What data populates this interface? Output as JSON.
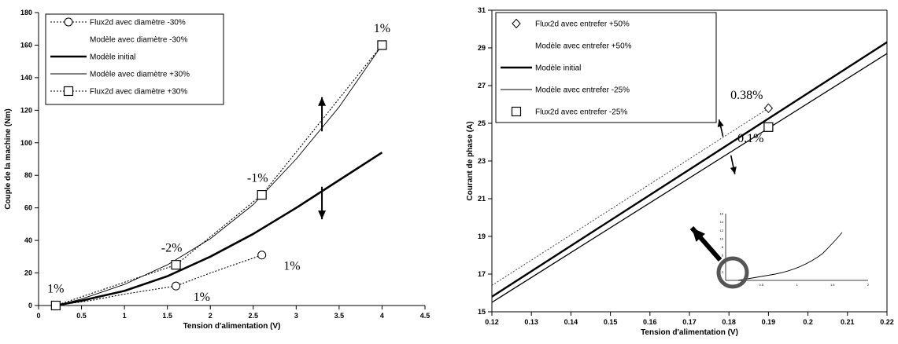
{
  "chart_data": [
    {
      "type": "line",
      "title": "",
      "xlabel": "Tension d'alimentation (V)",
      "ylabel": "Couple de la machine (Nm)",
      "xlim": [
        0,
        4.5
      ],
      "ylim": [
        0,
        180
      ],
      "xticks": [
        "0",
        "0.5",
        "1",
        "1.5",
        "2",
        "2.5",
        "3",
        "3.5",
        "4",
        "4.5"
      ],
      "yticks": [
        "0",
        "20",
        "40",
        "60",
        "80",
        "100",
        "120",
        "140",
        "160",
        "180"
      ],
      "grid": false,
      "legend_position": "top-left",
      "series": [
        {
          "name": "Flux2d avec diamètre -30%",
          "style": "dotted-marker-circle",
          "x": [
            0.2,
            1.6,
            2.6
          ],
          "y": [
            0,
            12,
            31
          ]
        },
        {
          "name": "Modèle avec diamètre -30%",
          "style": "none",
          "x": [],
          "y": []
        },
        {
          "name": "Modèle initial",
          "style": "thick-solid",
          "x": [
            0.2,
            0.5,
            1.0,
            1.5,
            2.0,
            2.5,
            3.0,
            3.5,
            4.0
          ],
          "y": [
            0,
            3,
            9,
            18,
            30,
            44,
            60,
            77,
            94
          ]
        },
        {
          "name": "Modèle avec diamètre +30%",
          "style": "thin-solid",
          "x": [
            0.2,
            0.5,
            1.0,
            1.5,
            2.0,
            2.5,
            3.0,
            3.5,
            4.0
          ],
          "y": [
            0,
            4,
            13,
            25,
            41,
            62,
            90,
            122,
            160
          ]
        },
        {
          "name": "Flux2d avec diamètre +30%",
          "style": "dotted-marker-square",
          "x": [
            0.2,
            1.6,
            2.6,
            4.0
          ],
          "y": [
            0,
            25,
            68,
            160
          ]
        }
      ],
      "extra_curves": [
        {
          "style": "dotted",
          "x": [
            0.2,
            0.6,
            1.0,
            1.6,
            2.0,
            2.6
          ],
          "y": [
            0,
            3,
            7,
            12,
            20,
            31
          ]
        }
      ],
      "annotations": [
        {
          "text": "1%",
          "x": 0.2,
          "y": 8
        },
        {
          "text": "-2%",
          "x": 1.55,
          "y": 33
        },
        {
          "text": "1%",
          "x": 1.9,
          "y": 3
        },
        {
          "text": "1%",
          "x": 2.95,
          "y": 22
        },
        {
          "text": "-1%",
          "x": 2.55,
          "y": 76
        },
        {
          "text": "1%",
          "x": 4.0,
          "y": 168
        }
      ],
      "arrows": [
        {
          "direction": "up",
          "x": 3.3,
          "y_from": 107,
          "y_to": 128
        },
        {
          "direction": "down",
          "x": 3.3,
          "y_from": 73,
          "y_to": 53
        }
      ]
    },
    {
      "type": "line",
      "title": "",
      "xlabel": "Tension d'alimentation (V)",
      "ylabel": "Courant de phase (A)",
      "xlim": [
        0.12,
        0.22
      ],
      "ylim": [
        15,
        31
      ],
      "xticks": [
        "0.12",
        "0.13",
        "0.14",
        "0.15",
        "0.16",
        "0.17",
        "0.18",
        "0.19",
        "0.2",
        "0.21",
        "0.22"
      ],
      "yticks": [
        "15",
        "17",
        "19",
        "21",
        "23",
        "25",
        "27",
        "29",
        "31"
      ],
      "grid": false,
      "legend_position": "top-left",
      "series": [
        {
          "name": "Flux2d avec entrefer +50%",
          "style": "marker-diamond",
          "x": [
            0.19
          ],
          "y": [
            25.8
          ]
        },
        {
          "name": "Modèle avec entrefer +50%",
          "style": "none",
          "x": [],
          "y": []
        },
        {
          "name": "Modèle initial",
          "style": "thick-solid",
          "x": [
            0.12,
            0.22
          ],
          "y": [
            15.8,
            29.3
          ]
        },
        {
          "name": "Modèle avec entrefer -25%",
          "style": "thin-solid",
          "x": [
            0.12,
            0.22
          ],
          "y": [
            15.5,
            28.7
          ]
        },
        {
          "name": "Flux2d avec entrefer -25%",
          "style": "marker-square",
          "x": [
            0.19
          ],
          "y": [
            24.8
          ]
        }
      ],
      "extra_curves": [
        {
          "style": "dotted",
          "x": [
            0.12,
            0.19
          ],
          "y": [
            16.4,
            25.8
          ]
        }
      ],
      "annotations": [
        {
          "text": "0.38%",
          "x": 0.1845,
          "y": 26.3
        },
        {
          "text": "0.1%",
          "x": 0.1855,
          "y": 24.0
        }
      ],
      "arrows": [
        {
          "direction": "up-left",
          "from": [
            0.1785,
            24.3
          ],
          "to": [
            0.1775,
            25.2
          ]
        },
        {
          "direction": "down-right",
          "from": [
            0.1805,
            23.3
          ],
          "to": [
            0.1815,
            22.3
          ]
        }
      ],
      "inset": {
        "xticks": [
          "0",
          "0.5",
          "1",
          "1.5",
          "2"
        ],
        "yticks": [
          "0",
          "2",
          "4",
          "6",
          "8",
          "10",
          "12",
          "14",
          "16"
        ]
      }
    }
  ]
}
